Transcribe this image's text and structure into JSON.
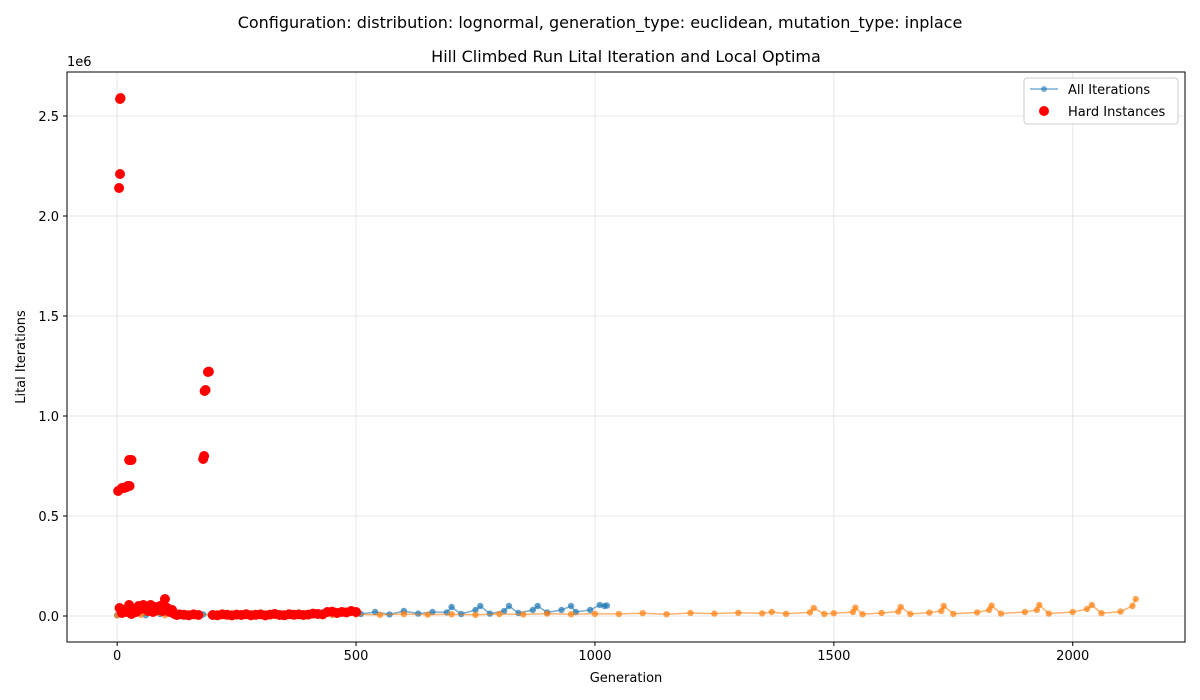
{
  "suptitle": "Configuration: distribution: lognormal, generation_type: euclidean, mutation_type: inplace",
  "chart_data": {
    "type": "scatter",
    "title": "Hill Climbed Run Lital Iteration and Local Optima",
    "xlabel": "Generation",
    "ylabel": "Lital Iterations",
    "y_offset_label": "1e6",
    "xlim": [
      -105,
      2235
    ],
    "ylim": [
      -130000,
      2720000
    ],
    "xticks": [
      0,
      500,
      1000,
      1500,
      2000
    ],
    "xtick_labels": [
      "0",
      "500",
      "1000",
      "1500",
      "2000"
    ],
    "yticks": [
      0,
      500000,
      1000000,
      1500000,
      2000000,
      2500000
    ],
    "ytick_labels": [
      "0.0",
      "0.5",
      "1.0",
      "1.5",
      "2.0",
      "2.5"
    ],
    "grid": true,
    "legend_position": "top-right",
    "legend": [
      {
        "label": "All Iterations",
        "marker": "line-dot",
        "color": "#1f77b4"
      },
      {
        "label": "Hard Instances",
        "marker": "dot",
        "color": "#ff0000"
      }
    ],
    "colors": {
      "run_a": "#1f77b4",
      "run_b": "#ff7f0e",
      "hard": "#ff0000"
    },
    "series": [
      {
        "key": "all_iterations_run_a",
        "color": "#1f77b4",
        "x": [
          0,
          30,
          60,
          90,
          120,
          150,
          180,
          210,
          240,
          270,
          300,
          330,
          360,
          390,
          420,
          450,
          480,
          510,
          540,
          570,
          600,
          630,
          660,
          690,
          700,
          720,
          750,
          760,
          780,
          810,
          820,
          840,
          870,
          880,
          900,
          930,
          950,
          960,
          990,
          1010,
          1020,
          1025
        ],
        "y": [
          5000,
          8000,
          4000,
          10000,
          6000,
          3000,
          8000,
          5000,
          12000,
          6000,
          10000,
          5000,
          9000,
          7000,
          15000,
          8000,
          12000,
          10000,
          20000,
          8000,
          25000,
          12000,
          20000,
          18000,
          45000,
          10000,
          30000,
          50000,
          12000,
          25000,
          50000,
          15000,
          30000,
          50000,
          18000,
          30000,
          50000,
          20000,
          30000,
          55000,
          50000,
          52000
        ]
      },
      {
        "key": "all_iterations_run_b",
        "color": "#ff7f0e",
        "x": [
          0,
          50,
          100,
          150,
          200,
          250,
          300,
          350,
          400,
          450,
          500,
          550,
          600,
          650,
          700,
          750,
          800,
          850,
          900,
          950,
          1000,
          1050,
          1100,
          1150,
          1200,
          1250,
          1300,
          1350,
          1370,
          1400,
          1450,
          1458,
          1480,
          1500,
          1540,
          1545,
          1560,
          1600,
          1635,
          1640,
          1660,
          1700,
          1725,
          1730,
          1750,
          1800,
          1825,
          1830,
          1850,
          1900,
          1925,
          1930,
          1950,
          2000,
          2030,
          2040,
          2060,
          2100,
          2125,
          2132
        ],
        "y": [
          3000,
          6000,
          4000,
          5000,
          8000,
          6000,
          4000,
          9000,
          7000,
          5000,
          8000,
          6000,
          10000,
          7000,
          9000,
          6000,
          10000,
          8000,
          12000,
          9000,
          11000,
          10000,
          14000,
          9000,
          15000,
          12000,
          16000,
          13000,
          20000,
          11000,
          18000,
          40000,
          10000,
          14000,
          20000,
          42000,
          9000,
          15000,
          22000,
          45000,
          10000,
          17000,
          25000,
          50000,
          11000,
          18000,
          30000,
          52000,
          12000,
          20000,
          30000,
          55000,
          12000,
          20000,
          35000,
          55000,
          14000,
          22000,
          50000,
          85000
        ]
      }
    ],
    "hard_instances": {
      "color": "#ff0000",
      "x": [
        2,
        4,
        6,
        6,
        7,
        10,
        15,
        20,
        22,
        25,
        26,
        28,
        30,
        5,
        10,
        15,
        20,
        25,
        30,
        35,
        40,
        45,
        50,
        55,
        60,
        65,
        70,
        75,
        80,
        85,
        90,
        95,
        100,
        105,
        110,
        115,
        120,
        125,
        130,
        140,
        150,
        160,
        170,
        180,
        182,
        183,
        185,
        190,
        192,
        200,
        210,
        220,
        230,
        240,
        250,
        260,
        270,
        280,
        290,
        300,
        310,
        320,
        330,
        340,
        350,
        360,
        370,
        380,
        390,
        400,
        410,
        420,
        430,
        440,
        450,
        460,
        470,
        480,
        490,
        500
      ],
      "y": [
        625000,
        2140000,
        2210000,
        2585000,
        2590000,
        640000,
        640000,
        645000,
        650000,
        780000,
        650000,
        780000,
        780000,
        40000,
        15000,
        30000,
        20000,
        55000,
        10000,
        30000,
        20000,
        50000,
        35000,
        55000,
        40000,
        25000,
        55000,
        20000,
        45000,
        30000,
        50000,
        25000,
        85000,
        40000,
        20000,
        30000,
        10000,
        5000,
        8000,
        6000,
        4000,
        8000,
        5000,
        785000,
        800000,
        1125000,
        1130000,
        1220000,
        1222000,
        5000,
        4000,
        8000,
        6000,
        3000,
        7000,
        5000,
        9000,
        4000,
        6000,
        8000,
        3000,
        7000,
        10000,
        5000,
        4000,
        9000,
        6000,
        8000,
        5000,
        7000,
        12000,
        10000,
        8000,
        20000,
        22000,
        15000,
        20000,
        18000,
        25000,
        20000
      ]
    }
  }
}
